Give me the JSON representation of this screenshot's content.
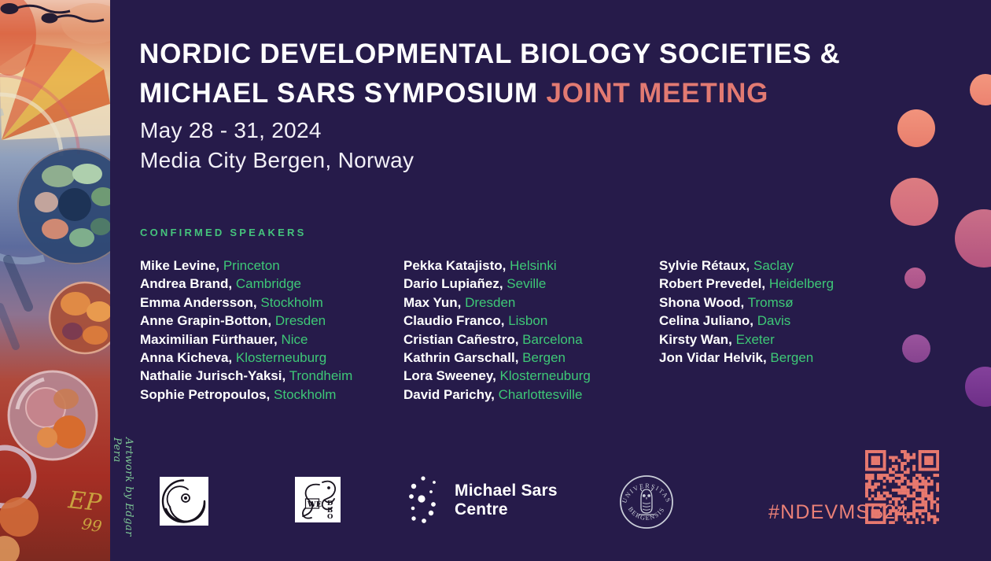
{
  "poster": {
    "title": {
      "line1": "NORDIC DEVELOPMENTAL BIOLOGY SOCIETIES &",
      "line2_plain": "MICHAEL SARS SYMPOSIUM",
      "line2_accent": "JOINT MEETING"
    },
    "dates": "May 28 - 31, 2024",
    "venue": "Media City Bergen, Norway",
    "speakers_heading": "CONFIRMED SPEAKERS",
    "hashtag": "#NDEVMSS24",
    "artwork_credit": "Artwork by Edgar Pera",
    "artwork_signature_initials": "EP",
    "artwork_signature_year": "99"
  },
  "speakers": {
    "column1": [
      {
        "name": "Mike Levine",
        "location": "Princeton"
      },
      {
        "name": "Andrea Brand",
        "location": "Cambridge"
      },
      {
        "name": "Emma Andersson",
        "location": "Stockholm"
      },
      {
        "name": "Anne Grapin-Botton",
        "location": "Dresden"
      },
      {
        "name": "Maximilian Fürthauer",
        "location": "Nice"
      },
      {
        "name": "Anna Kicheva",
        "location": "Klosterneuburg"
      },
      {
        "name": "Nathalie Jurisch-Yaksi",
        "location": "Trondheim"
      },
      {
        "name": "Sophie Petropoulos",
        "location": "Stockholm"
      }
    ],
    "column2": [
      {
        "name": "Pekka Katajisto",
        "location": "Helsinki"
      },
      {
        "name": "Dario Lupiañez",
        "location": "Seville"
      },
      {
        "name": "Max Yun",
        "location": "Dresden"
      },
      {
        "name": "Claudio Franco",
        "location": "Lisbon"
      },
      {
        "name": "Cristian Cañestro",
        "location": "Barcelona"
      },
      {
        "name": "Kathrin Garschall",
        "location": "Bergen"
      },
      {
        "name": "Lora Sweeney",
        "location": "Klosterneuburg"
      },
      {
        "name": "David Parichy",
        "location": "Charlottesville"
      }
    ],
    "column3": [
      {
        "name": "Sylvie Rétaux",
        "location": "Saclay"
      },
      {
        "name": "Robert Prevedel",
        "location": "Heidelberg"
      },
      {
        "name": "Shona Wood",
        "location": "Tromsø"
      },
      {
        "name": "Celina Juliano",
        "location": "Davis"
      },
      {
        "name": "Kirsty Wan",
        "location": "Exeter"
      },
      {
        "name": "Jon Vidar Helvik",
        "location": "Bergen"
      }
    ]
  },
  "logos": {
    "michael_sars": {
      "line1": "Michael Sars",
      "line2": "Centre"
    },
    "university_of_bergen": {
      "arc_top": "UNIVERSITAS",
      "arc_bottom": "BERGENSIS"
    },
    "swedbo": {
      "letters_we": "WE",
      "letters_dbo": "DBO"
    }
  },
  "colors": {
    "background": "#261b4a",
    "accent_coral": "#e27a72",
    "hashtag_coral": "#ea8077",
    "qr": "#e8796f",
    "speaker_green": "#3ec877",
    "heading_green": "#45c37c",
    "credit_green": "#7dc795",
    "white": "#ffffff"
  }
}
